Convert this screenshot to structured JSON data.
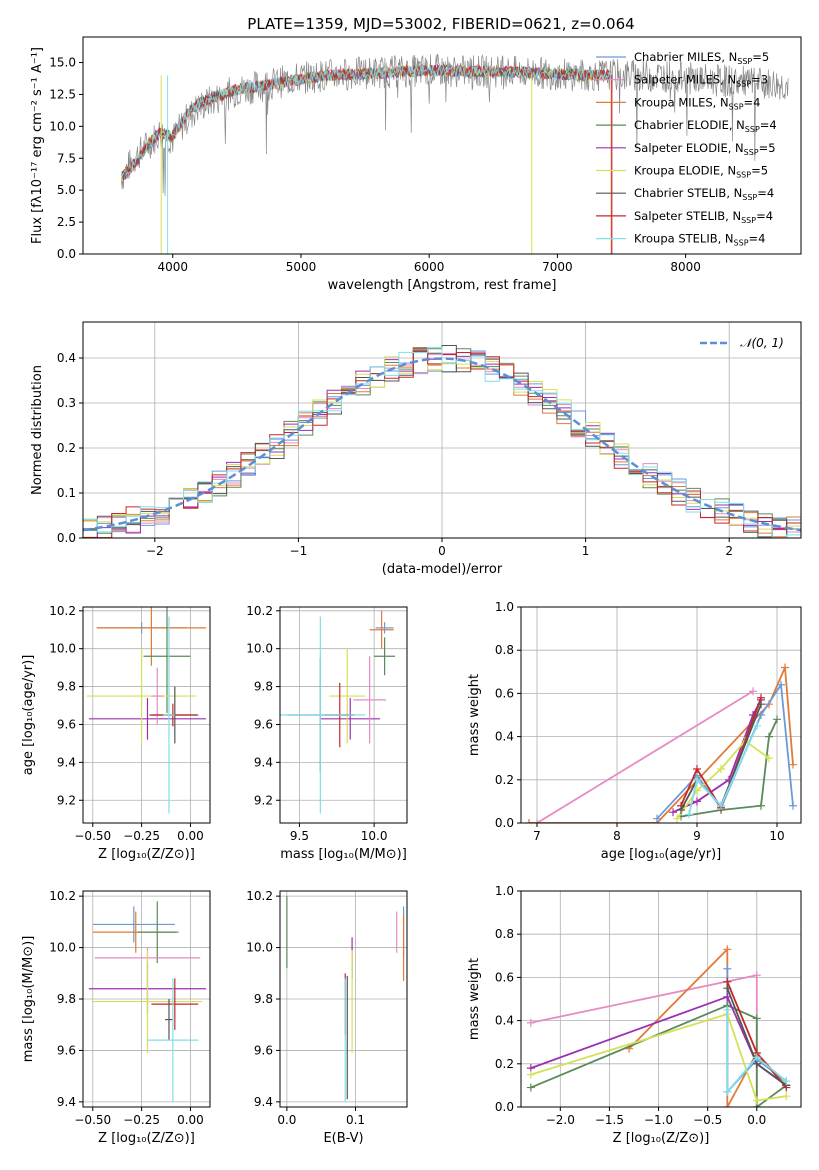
{
  "figure": {
    "title": "PLATE=1359, MJD=53002, FIBERID=0621, z=0.064"
  },
  "colors": {
    "chabrier_miles": "#6a9bd8",
    "salpeter_miles": "#e78ac3",
    "kroupa_miles": "#e07b39",
    "chabrier_elodie": "#5a8a5a",
    "salpeter_elodie": "#9c2fb0",
    "kroupa_elodie": "#d4e157",
    "chabrier_stelib": "#555555",
    "salpeter_stelib": "#c62828",
    "kroupa_stelib": "#80deea",
    "data": "#888888",
    "normal": "#5b8fd6",
    "grid": "#b0b0b0"
  },
  "chart_data": [
    {
      "id": "spectrum",
      "type": "line",
      "xlabel": "wavelength [Angstrom, rest frame]",
      "ylabel": "Flux [fλ10⁻¹⁷ erg cm⁻² s⁻¹ A⁻¹]",
      "xlim": [
        3300,
        8900
      ],
      "ylim": [
        0,
        17
      ],
      "xticks": [
        4000,
        5000,
        6000,
        7000,
        8000
      ],
      "yticks": [
        0.0,
        2.5,
        5.0,
        7.5,
        10.0,
        12.5,
        15.0
      ],
      "legend": [
        {
          "key": "chabrier_miles",
          "label": "Chabrier MILES, N",
          "sub": "SSP",
          "val": "=5"
        },
        {
          "key": "salpeter_miles",
          "label": "Salpeter MILES, N",
          "sub": "SSP",
          "val": "=3"
        },
        {
          "key": "kroupa_miles",
          "label": "Kroupa MILES, N",
          "sub": "SSP",
          "val": "=4"
        },
        {
          "key": "chabrier_elodie",
          "label": "Chabrier ELODIE, N",
          "sub": "SSP",
          "val": "=4"
        },
        {
          "key": "salpeter_elodie",
          "label": "Salpeter ELODIE, N",
          "sub": "SSP",
          "val": "=5"
        },
        {
          "key": "kroupa_elodie",
          "label": "Kroupa ELODIE, N",
          "sub": "SSP",
          "val": "=5"
        },
        {
          "key": "chabrier_stelib",
          "label": "Chabrier STELIB, N",
          "sub": "SSP",
          "val": "=4"
        },
        {
          "key": "salpeter_stelib",
          "label": "Salpeter STELIB, N",
          "sub": "SSP",
          "val": "=4"
        },
        {
          "key": "kroupa_stelib",
          "label": "Kroupa STELIB, N",
          "sub": "SSP",
          "val": "=4"
        }
      ],
      "data_envelope": {
        "x": [
          3600,
          3700,
          3800,
          3900,
          4000,
          4100,
          4200,
          4300,
          4500,
          4700,
          5000,
          5200,
          5500,
          5800,
          6000,
          6300,
          6500,
          6800,
          7000,
          7200,
          7400,
          7600,
          7800,
          8000,
          8200,
          8400,
          8600,
          8800
        ],
        "y": [
          6.0,
          7.5,
          8.5,
          9.5,
          9.0,
          10.5,
          11.5,
          12.0,
          12.8,
          13.2,
          13.8,
          14.0,
          14.2,
          14.3,
          14.4,
          14.3,
          14.3,
          14.2,
          14.1,
          14.0,
          14.0,
          14.0,
          14.0,
          13.8,
          13.6,
          13.5,
          13.3,
          13.2
        ]
      },
      "model": {
        "x": [
          3600,
          3700,
          3800,
          3900,
          4000,
          4100,
          4200,
          4300,
          4500,
          4700,
          5000,
          5200,
          5500,
          5800,
          6000,
          6300,
          6500,
          6800,
          7000,
          7200,
          7400
        ],
        "y": [
          6.0,
          7.0,
          8.5,
          9.5,
          9.2,
          10.8,
          11.8,
          12.2,
          12.9,
          13.2,
          13.7,
          14.0,
          14.1,
          14.3,
          14.4,
          14.3,
          14.3,
          14.2,
          14.1,
          14.0,
          14.0
        ]
      }
    },
    {
      "id": "residuals",
      "type": "area",
      "xlabel": "(data-model)/error",
      "ylabel": "Normed distribution",
      "xlim": [
        -2.5,
        2.5
      ],
      "ylim": [
        0,
        0.48
      ],
      "xticks": [
        -2,
        -1,
        0,
        1,
        2
      ],
      "yticks": [
        0.0,
        0.1,
        0.2,
        0.3,
        0.4
      ],
      "legend": "𝒩(0, 1)"
    },
    {
      "id": "age_vs_Z",
      "type": "scatter",
      "xlabel": "Z [log₁₀(Z/Z⊙)]",
      "ylabel": "age  [log₁₀(age/yr)]",
      "xlim": [
        -0.55,
        0.1
      ],
      "ylim": [
        9.08,
        10.22
      ],
      "xticks": [
        -0.5,
        -0.25,
        0.0
      ],
      "xticklabels": [
        "−0.50",
        "−0.25",
        "0.00"
      ],
      "yticks": [
        9.2,
        9.4,
        9.6,
        9.8,
        10.0,
        10.2
      ],
      "points": [
        {
          "key": "chabrier_miles",
          "x": -0.25,
          "xerr": 0.23,
          "y": 10.11,
          "yerr": 0.03
        },
        {
          "key": "kroupa_miles",
          "x": -0.2,
          "xerr": 0.28,
          "y": 10.11,
          "yerr": 0.2
        },
        {
          "key": "chabrier_elodie",
          "x": -0.12,
          "xerr": 0.12,
          "y": 9.96,
          "yerr": 0.3
        },
        {
          "key": "salpeter_elodie",
          "x": -0.22,
          "xerr": 0.3,
          "y": 9.63,
          "yerr": 0.11
        },
        {
          "key": "kroupa_elodie",
          "x": -0.25,
          "xerr": 0.28,
          "y": 9.75,
          "yerr": 0.25
        },
        {
          "key": "salpeter_miles",
          "x": -0.17,
          "xerr": 0.03,
          "y": 9.75,
          "yerr": 0.15
        },
        {
          "key": "chabrier_stelib",
          "x": -0.08,
          "xerr": 0.12,
          "y": 9.65,
          "yerr": 0.15
        },
        {
          "key": "salpeter_stelib",
          "x": -0.09,
          "xerr": 0.12,
          "y": 9.65,
          "yerr": 0.06
        },
        {
          "key": "kroupa_stelib",
          "x": -0.11,
          "xerr": 0.03,
          "y": 9.65,
          "yerr": 0.52
        }
      ]
    },
    {
      "id": "age_vs_mass",
      "type": "scatter",
      "xlabel": "mass [log₁₀(M/M⊙)]",
      "ylabel": "",
      "xlim": [
        9.37,
        10.22
      ],
      "ylim": [
        9.08,
        10.22
      ],
      "xticks": [
        9.5,
        10.0
      ],
      "yticks": [
        9.2,
        9.4,
        9.6,
        9.8,
        10.0,
        10.2
      ],
      "points": [
        {
          "key": "chabrier_miles",
          "x": 10.07,
          "xerr": 0.06,
          "y": 10.11,
          "yerr": 0.03
        },
        {
          "key": "kroupa_miles",
          "x": 10.05,
          "xerr": 0.08,
          "y": 10.1,
          "yerr": 0.1
        },
        {
          "key": "chabrier_elodie",
          "x": 10.07,
          "xerr": 0.07,
          "y": 9.96,
          "yerr": 0.1
        },
        {
          "key": "salpeter_elodie",
          "x": 9.84,
          "xerr": 0.2,
          "y": 9.63,
          "yerr": 0.11
        },
        {
          "key": "kroupa_elodie",
          "x": 9.82,
          "xerr": 0.12,
          "y": 9.75,
          "yerr": 0.25
        },
        {
          "key": "salpeter_miles",
          "x": 9.97,
          "xerr": 0.11,
          "y": 9.73,
          "yerr": 0.23
        },
        {
          "key": "chabrier_stelib",
          "x": 9.64,
          "xerr": 0.22,
          "y": 9.65,
          "yerr": 0.3
        },
        {
          "key": "salpeter_stelib",
          "x": 9.77,
          "xerr": 0.1,
          "y": 9.65,
          "yerr": 0.17
        },
        {
          "key": "kroupa_stelib",
          "x": 9.64,
          "xerr": 0.3,
          "y": 9.65,
          "yerr": 0.52
        }
      ]
    },
    {
      "id": "mw_vs_age",
      "type": "line",
      "xlabel": "age  [log₁₀(age/yr)]",
      "ylabel": "mass weight",
      "xlim": [
        6.8,
        10.3
      ],
      "ylim": [
        0,
        1.0
      ],
      "xticks": [
        7,
        8,
        9,
        10
      ],
      "yticks": [
        0.0,
        0.2,
        0.4,
        0.6,
        0.8,
        1.0
      ],
      "series": [
        {
          "key": "salpeter_miles",
          "x": [
            6.9,
            7.0,
            9.7
          ],
          "y": [
            0.0,
            0.0,
            0.61
          ]
        },
        {
          "key": "kroupa_miles",
          "x": [
            6.9,
            8.5,
            9.9,
            10.1,
            10.2
          ],
          "y": [
            0.0,
            0.0,
            0.55,
            0.72,
            0.27
          ]
        },
        {
          "key": "chabrier_miles",
          "x": [
            8.5,
            9.0,
            9.3,
            9.8,
            10.05,
            10.2
          ],
          "y": [
            0.02,
            0.22,
            0.07,
            0.5,
            0.64,
            0.08
          ]
        },
        {
          "key": "chabrier_elodie",
          "x": [
            8.8,
            9.3,
            9.8,
            9.9,
            10.0
          ],
          "y": [
            0.03,
            0.06,
            0.08,
            0.4,
            0.48
          ]
        },
        {
          "key": "salpeter_elodie",
          "x": [
            8.7,
            9.0,
            9.4,
            9.7,
            9.8
          ],
          "y": [
            0.05,
            0.1,
            0.2,
            0.5,
            0.57
          ]
        },
        {
          "key": "kroupa_elodie",
          "x": [
            8.75,
            9.0,
            9.3,
            9.6,
            9.9
          ],
          "y": [
            0.02,
            0.15,
            0.25,
            0.38,
            0.3
          ]
        },
        {
          "key": "salpeter_stelib",
          "x": [
            8.8,
            9.0,
            9.3,
            9.8
          ],
          "y": [
            0.08,
            0.25,
            0.07,
            0.58
          ]
        },
        {
          "key": "chabrier_stelib",
          "x": [
            8.8,
            9.0,
            9.3,
            9.8
          ],
          "y": [
            0.06,
            0.2,
            0.08,
            0.55
          ]
        },
        {
          "key": "kroupa_stelib",
          "x": [
            8.9,
            9.0,
            9.3,
            9.75
          ],
          "y": [
            0.04,
            0.2,
            0.08,
            0.45
          ]
        }
      ]
    },
    {
      "id": "mass_vs_Z",
      "type": "scatter",
      "xlabel": "Z [log₁₀(Z/Z⊙)]",
      "ylabel": "mass [log₁₀(M/M⊙)]",
      "xlim": [
        -0.55,
        0.1
      ],
      "ylim": [
        9.38,
        10.22
      ],
      "xticks": [
        -0.5,
        -0.25,
        0.0
      ],
      "xticklabels": [
        "−0.50",
        "−0.25",
        "0.00"
      ],
      "yticks": [
        9.4,
        9.6,
        9.8,
        10.0,
        10.2
      ],
      "points": [
        {
          "key": "chabrier_miles",
          "x": -0.29,
          "xerr": 0.21,
          "y": 10.09,
          "yerr": 0.07
        },
        {
          "key": "kroupa_miles",
          "x": -0.28,
          "xerr": 0.22,
          "y": 10.06,
          "yerr": 0.08
        },
        {
          "key": "chabrier_elodie",
          "x": -0.17,
          "xerr": 0.1,
          "y": 10.06,
          "yerr": 0.12
        },
        {
          "key": "salpeter_miles",
          "x": -0.22,
          "xerr": 0.27,
          "y": 9.96,
          "yerr": 0.04
        },
        {
          "key": "salpeter_elodie",
          "x": -0.22,
          "xerr": 0.3,
          "y": 9.84,
          "yerr": 0.1
        },
        {
          "key": "kroupa_elodie",
          "x": -0.22,
          "xerr": 0.28,
          "y": 9.79,
          "yerr": 0.2
        },
        {
          "key": "chabrier_stelib",
          "x": -0.11,
          "xerr": 0.02,
          "y": 9.72,
          "yerr": 0.08
        },
        {
          "key": "salpeter_stelib",
          "x": -0.08,
          "xerr": 0.12,
          "y": 9.78,
          "yerr": 0.1
        },
        {
          "key": "kroupa_stelib",
          "x": -0.09,
          "xerr": 0.13,
          "y": 9.64,
          "yerr": 0.24
        }
      ]
    },
    {
      "id": "mass_vs_ebv",
      "type": "scatter",
      "xlabel": "E(B-V)",
      "ylabel": "",
      "xlim": [
        -0.01,
        0.175
      ],
      "ylim": [
        9.38,
        10.22
      ],
      "xticks": [
        0.0,
        0.1
      ],
      "xticklabels": [
        "0.0",
        "0.1"
      ],
      "yticks": [
        9.4,
        9.6,
        9.8,
        10.0,
        10.2
      ],
      "points": [
        {
          "key": "chabrier_elodie",
          "x": 0.0,
          "xerr": 0,
          "y": 10.06,
          "yerr": 0.14
        },
        {
          "key": "salpeter_elodie",
          "x": 0.095,
          "xerr": 0,
          "y": 9.96,
          "yerr": 0.08
        },
        {
          "key": "kroupa_elodie",
          "x": 0.095,
          "xerr": 0,
          "y": 9.79,
          "yerr": 0.2
        },
        {
          "key": "salpeter_stelib",
          "x": 0.085,
          "xerr": 0,
          "y": 9.78,
          "yerr": 0.12
        },
        {
          "key": "chabrier_stelib",
          "x": 0.088,
          "xerr": 0,
          "y": 9.65,
          "yerr": 0.24
        },
        {
          "key": "kroupa_stelib",
          "x": 0.085,
          "xerr": 0,
          "y": 9.64,
          "yerr": 0.24
        },
        {
          "key": "salpeter_miles",
          "x": 0.16,
          "xerr": 0,
          "y": 10.06,
          "yerr": 0.08
        },
        {
          "key": "chabrier_miles",
          "x": 0.17,
          "xerr": 0,
          "y": 10.06,
          "yerr": 0.1
        },
        {
          "key": "kroupa_miles",
          "x": 0.17,
          "xerr": 0,
          "y": 10.0,
          "yerr": 0.13
        }
      ]
    },
    {
      "id": "mw_vs_Z",
      "type": "line",
      "xlabel": "Z [log₁₀(Z/Z⊙)]",
      "ylabel": "mass weight",
      "xlim": [
        -2.4,
        0.45
      ],
      "ylim": [
        0,
        1.0
      ],
      "xticks": [
        -2.0,
        -1.5,
        -1.0,
        -0.5,
        0.0
      ],
      "xticklabels": [
        "−2.0",
        "−1.5",
        "−1.0",
        "−0.5",
        "0.0"
      ],
      "yticks": [
        0.0,
        0.2,
        0.4,
        0.6,
        0.8,
        1.0
      ],
      "series": [
        {
          "key": "salpeter_miles",
          "x": [
            -2.3,
            0.0,
            0.0
          ],
          "y": [
            0.39,
            0.61,
            0.0
          ]
        },
        {
          "key": "kroupa_miles",
          "x": [
            -1.3,
            -0.3,
            -0.3,
            0.0,
            0.3
          ],
          "y": [
            0.27,
            0.73,
            0.0,
            0.25,
            0.1
          ]
        },
        {
          "key": "chabrier_miles",
          "x": [
            -0.3,
            -0.3,
            0.0,
            0.3
          ],
          "y": [
            0.64,
            0.07,
            0.22,
            0.12
          ]
        },
        {
          "key": "chabrier_elodie",
          "x": [
            -2.3,
            -0.3,
            0.0,
            0.0,
            0.3
          ],
          "y": [
            0.09,
            0.47,
            0.41,
            0.0,
            0.1
          ]
        },
        {
          "key": "salpeter_elodie",
          "x": [
            -2.3,
            -0.3,
            0.0,
            0.3
          ],
          "y": [
            0.18,
            0.51,
            0.2,
            0.1
          ]
        },
        {
          "key": "kroupa_elodie",
          "x": [
            -2.3,
            -0.3,
            0.0,
            0.3
          ],
          "y": [
            0.15,
            0.43,
            0.03,
            0.05
          ]
        },
        {
          "key": "salpeter_stelib",
          "x": [
            -0.3,
            0.0,
            0.3
          ],
          "y": [
            0.58,
            0.25,
            0.09
          ]
        },
        {
          "key": "chabrier_stelib",
          "x": [
            -0.3,
            0.0,
            0.3
          ],
          "y": [
            0.55,
            0.2,
            0.1
          ]
        },
        {
          "key": "kroupa_stelib",
          "x": [
            -0.3,
            -0.3,
            0.0,
            0.3
          ],
          "y": [
            0.45,
            0.07,
            0.23,
            0.12
          ]
        }
      ]
    }
  ]
}
